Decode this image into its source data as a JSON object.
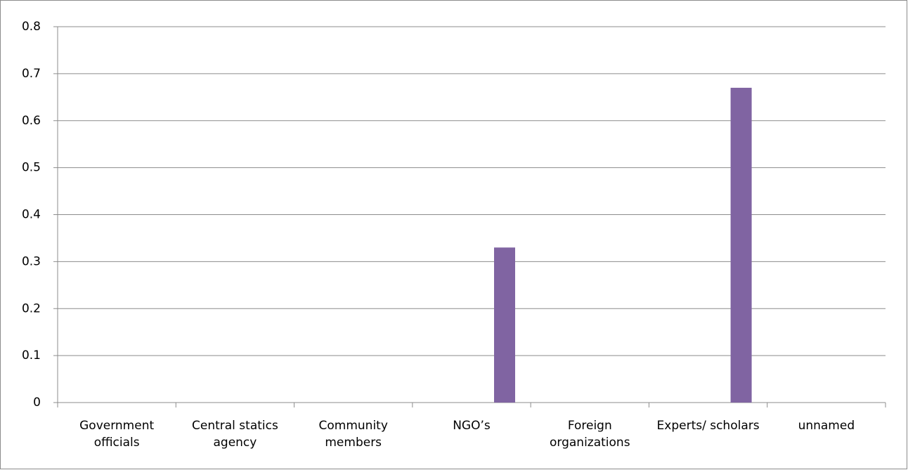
{
  "chart_data": {
    "type": "bar",
    "categories": [
      "Government officials",
      "Central statics agency",
      "Community members",
      "NGO’s",
      "Foreign organizations",
      "Experts/ scholars",
      "unnamed"
    ],
    "values": [
      0,
      0,
      0,
      0.33,
      0,
      0.67,
      0
    ],
    "color": "#8064a2",
    "ylim": [
      0,
      0.8
    ],
    "yticks": [
      0,
      0.1,
      0.2,
      0.3,
      0.4,
      0.5,
      0.6,
      0.7,
      0.8
    ],
    "grid": true
  }
}
